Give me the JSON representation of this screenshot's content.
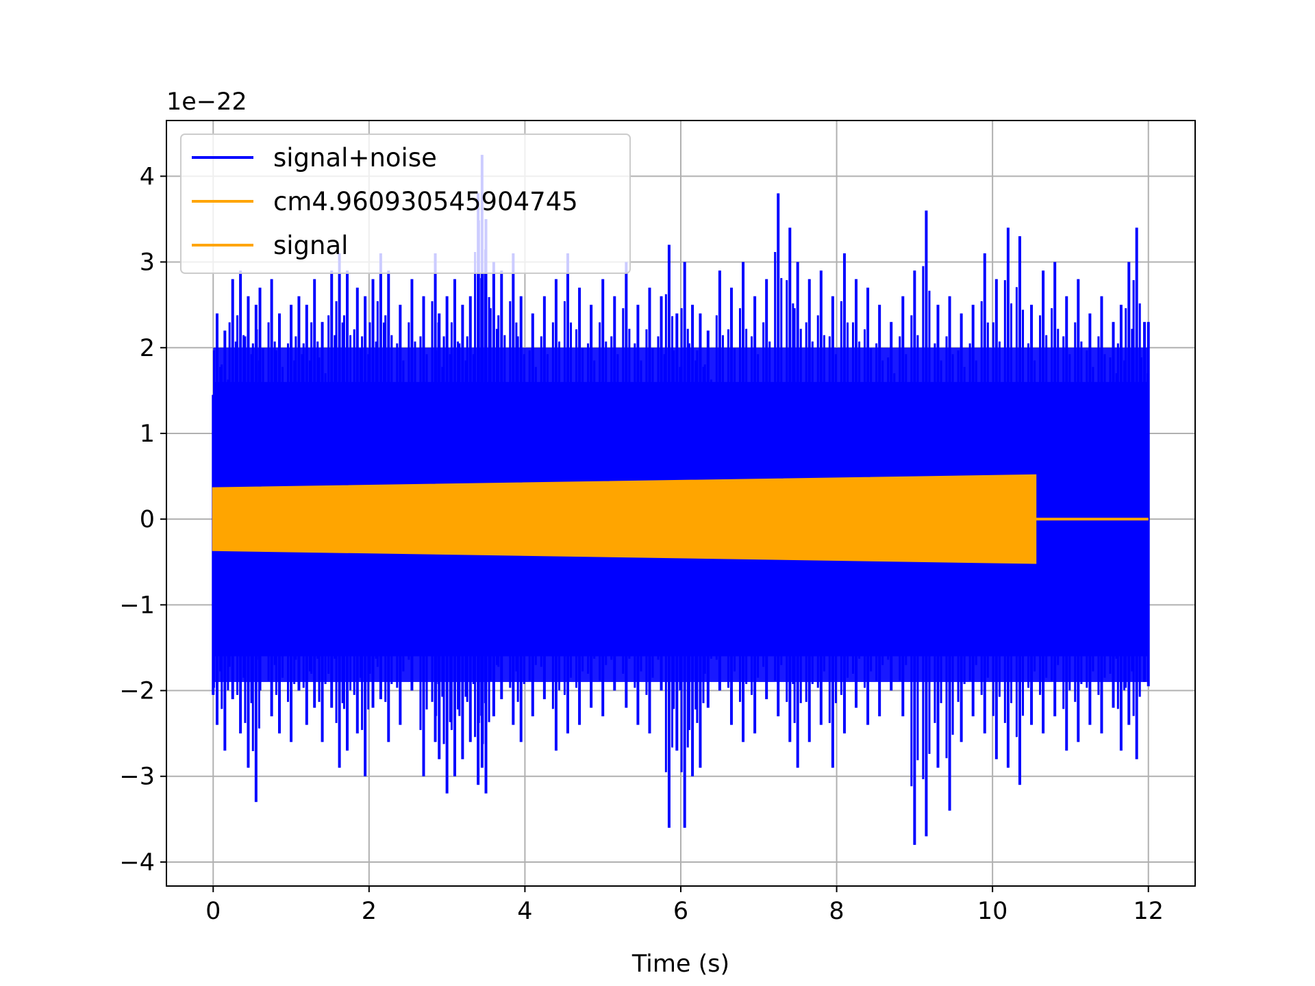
{
  "chart_data": {
    "type": "line",
    "title": "",
    "xlabel": "Time (s)",
    "ylabel": "",
    "y_offset_text": "1e−22",
    "xlim": [
      -0.6,
      12.6
    ],
    "ylim": [
      -4.28,
      4.65
    ],
    "xticks": [
      0,
      2,
      4,
      6,
      8,
      10,
      12
    ],
    "xtick_labels": [
      "0",
      "2",
      "4",
      "6",
      "8",
      "10",
      "12"
    ],
    "yticks": [
      -4,
      -3,
      -2,
      -1,
      0,
      1,
      2,
      3,
      4
    ],
    "ytick_labels": [
      "−4",
      "−3",
      "−2",
      "−1",
      "0",
      "1",
      "2",
      "3",
      "4"
    ],
    "grid": true,
    "legend_position": "upper-left",
    "series": [
      {
        "name": "signal+noise",
        "color": "#0000ff",
        "style": "noise-band",
        "x_range": [
          0,
          12
        ],
        "typical_band": [
          -1.6,
          1.6
        ],
        "peaks": {
          "x": [
            0.05,
            0.15,
            0.25,
            0.35,
            0.45,
            0.55,
            0.6,
            0.75,
            0.85,
            1.0,
            1.1,
            1.2,
            1.3,
            1.4,
            1.52,
            1.62,
            1.72,
            1.85,
            1.95,
            2.05,
            2.15,
            2.25,
            2.4,
            2.55,
            2.7,
            2.85,
            2.9,
            3.0,
            3.1,
            3.2,
            3.3,
            3.4,
            3.45,
            3.5,
            3.6,
            3.7,
            3.85,
            3.95,
            4.1,
            4.25,
            4.4,
            4.55,
            4.7,
            4.85,
            5.0,
            5.15,
            5.3,
            5.45,
            5.6,
            5.75,
            5.85,
            5.95,
            6.05,
            6.15,
            6.25,
            6.35,
            6.5,
            6.65,
            6.8,
            6.95,
            7.1,
            7.25,
            7.4,
            7.5,
            7.65,
            7.8,
            7.95,
            8.1,
            8.25,
            8.4,
            8.55,
            8.7,
            8.85,
            9.0,
            9.15,
            9.3,
            9.45,
            9.6,
            9.75,
            9.9,
            10.05,
            10.2,
            10.35,
            10.5,
            10.65,
            10.8,
            10.95,
            11.1,
            11.25,
            11.4,
            11.55,
            11.65,
            11.75,
            11.85,
            11.95
          ],
          "ymax": [
            2.4,
            2.2,
            2.8,
            2.9,
            2.6,
            2.5,
            2.7,
            2.8,
            2.4,
            2.5,
            2.6,
            2.5,
            2.8,
            2.3,
            2.9,
            3.1,
            2.9,
            2.7,
            2.6,
            2.8,
            3.1,
            2.9,
            2.5,
            2.8,
            2.6,
            3.1,
            2.4,
            2.6,
            2.8,
            2.5,
            2.6,
            3.8,
            4.25,
            3.5,
            3.0,
            2.9,
            3.1,
            2.6,
            2.4,
            2.6,
            2.8,
            3.1,
            2.7,
            2.5,
            2.8,
            2.6,
            3.0,
            2.5,
            2.7,
            2.6,
            3.2,
            2.4,
            3.0,
            2.5,
            2.4,
            2.2,
            2.9,
            2.7,
            3.0,
            2.6,
            2.8,
            3.8,
            3.4,
            3.0,
            2.8,
            2.9,
            2.6,
            3.1,
            2.8,
            2.7,
            2.5,
            2.3,
            2.6,
            2.9,
            3.6,
            2.5,
            2.6,
            2.4,
            2.5,
            3.1,
            2.8,
            3.4,
            3.3,
            2.5,
            2.9,
            3.0,
            2.6,
            2.8,
            2.4,
            2.6,
            2.3,
            2.5,
            3.0,
            3.4,
            2.3
          ],
          "ymin": [
            -2.4,
            -2.7,
            -2.1,
            -2.5,
            -2.9,
            -3.3,
            -2.0,
            -2.3,
            -2.5,
            -2.6,
            -2.0,
            -2.4,
            -2.2,
            -2.6,
            -2.2,
            -2.9,
            -2.7,
            -2.5,
            -3.0,
            -2.2,
            -2.1,
            -2.6,
            -2.4,
            -2.0,
            -3.0,
            -2.6,
            -2.8,
            -3.2,
            -3.0,
            -2.8,
            -2.6,
            -3.1,
            -2.9,
            -3.2,
            -2.3,
            -2.1,
            -2.4,
            -2.6,
            -2.3,
            -2.1,
            -2.7,
            -2.5,
            -2.4,
            -2.2,
            -2.3,
            -2.0,
            -2.2,
            -2.4,
            -2.5,
            -2.0,
            -3.6,
            -2.7,
            -3.6,
            -3.0,
            -2.9,
            -2.2,
            -2.0,
            -2.4,
            -2.6,
            -2.5,
            -2.1,
            -2.3,
            -2.6,
            -2.9,
            -2.6,
            -2.4,
            -2.9,
            -2.5,
            -2.2,
            -2.4,
            -2.3,
            -2.0,
            -2.3,
            -3.8,
            -3.7,
            -2.9,
            -3.4,
            -2.6,
            -2.3,
            -2.5,
            -2.8,
            -2.9,
            -3.1,
            -2.4,
            -2.5,
            -2.3,
            -2.7,
            -2.6,
            -2.4,
            -2.5,
            -2.2,
            -2.7,
            -2.4,
            -2.8,
            -1.9
          ]
        }
      },
      {
        "name": "cm4.960930545904745",
        "color": "#ffa500",
        "style": "line",
        "x": [],
        "y": []
      },
      {
        "name": "signal",
        "color": "#ffa500",
        "style": "oscillating-envelope",
        "x": [
          0,
          10.55,
          10.55,
          12
        ],
        "envelope": [
          0.36,
          0.51,
          0,
          0
        ]
      }
    ]
  }
}
